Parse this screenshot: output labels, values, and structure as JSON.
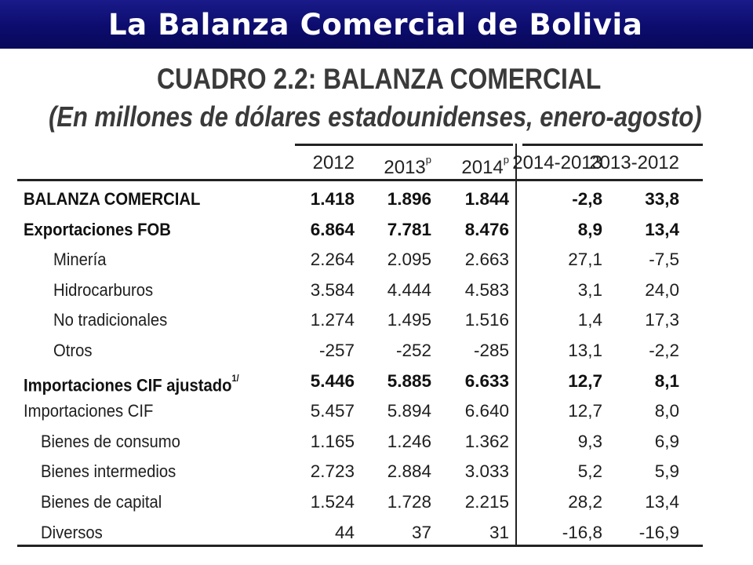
{
  "slide": {
    "title": "La Balanza Comercial de Bolivia"
  },
  "table": {
    "caption_line1": "CUADRO 2.2: BALANZA COMERCIAL",
    "caption_line2": "(En millones de dólares estadounidenses, enero-agosto)",
    "headers": [
      {
        "label": "2012",
        "sup": ""
      },
      {
        "label": "2013",
        "sup": "p"
      },
      {
        "label": "2014",
        "sup": "p"
      },
      {
        "label": "2014-2013",
        "sup": ""
      },
      {
        "label": "2013-2012",
        "sup": ""
      }
    ],
    "rows": [
      {
        "label": "BALANZA COMERCIAL",
        "sup": "",
        "indent": 0,
        "bold": true,
        "values": [
          "1.418",
          "1.896",
          "1.844",
          "-2,8",
          "33,8"
        ]
      },
      {
        "label": "Exportaciones FOB",
        "sup": "",
        "indent": 0,
        "bold": true,
        "values": [
          "6.864",
          "7.781",
          "8.476",
          "8,9",
          "13,4"
        ]
      },
      {
        "label": "Minería",
        "sup": "",
        "indent": 2,
        "bold": false,
        "values": [
          "2.264",
          "2.095",
          "2.663",
          "27,1",
          "-7,5"
        ]
      },
      {
        "label": "Hidrocarburos",
        "sup": "",
        "indent": 2,
        "bold": false,
        "values": [
          "3.584",
          "4.444",
          "4.583",
          "3,1",
          "24,0"
        ]
      },
      {
        "label": "No tradicionales",
        "sup": "",
        "indent": 2,
        "bold": false,
        "values": [
          "1.274",
          "1.495",
          "1.516",
          "1,4",
          "17,3"
        ]
      },
      {
        "label": "Otros",
        "sup": "",
        "indent": 2,
        "bold": false,
        "values": [
          "-257",
          "-252",
          "-285",
          "13,1",
          "-2,2"
        ]
      },
      {
        "label": "Importaciones CIF ajustado",
        "sup": "1/",
        "indent": 0,
        "bold": true,
        "values": [
          "5.446",
          "5.885",
          "6.633",
          "12,7",
          "8,1"
        ]
      },
      {
        "label": "Importaciones CIF",
        "sup": "",
        "indent": 0,
        "bold": false,
        "values": [
          "5.457",
          "5.894",
          "6.640",
          "12,7",
          "8,0"
        ]
      },
      {
        "label": "Bienes de consumo",
        "sup": "",
        "indent": 1,
        "bold": false,
        "values": [
          "1.165",
          "1.246",
          "1.362",
          "9,3",
          "6,9"
        ]
      },
      {
        "label": "Bienes intermedios",
        "sup": "",
        "indent": 1,
        "bold": false,
        "values": [
          "2.723",
          "2.884",
          "3.033",
          "5,2",
          "5,9"
        ]
      },
      {
        "label": "Bienes de capital",
        "sup": "",
        "indent": 1,
        "bold": false,
        "values": [
          "1.524",
          "1.728",
          "2.215",
          "28,2",
          "13,4"
        ]
      },
      {
        "label": "Diversos",
        "sup": "",
        "indent": 1,
        "bold": false,
        "values": [
          "44",
          "37",
          "31",
          "-16,8",
          "-16,9"
        ]
      }
    ]
  }
}
